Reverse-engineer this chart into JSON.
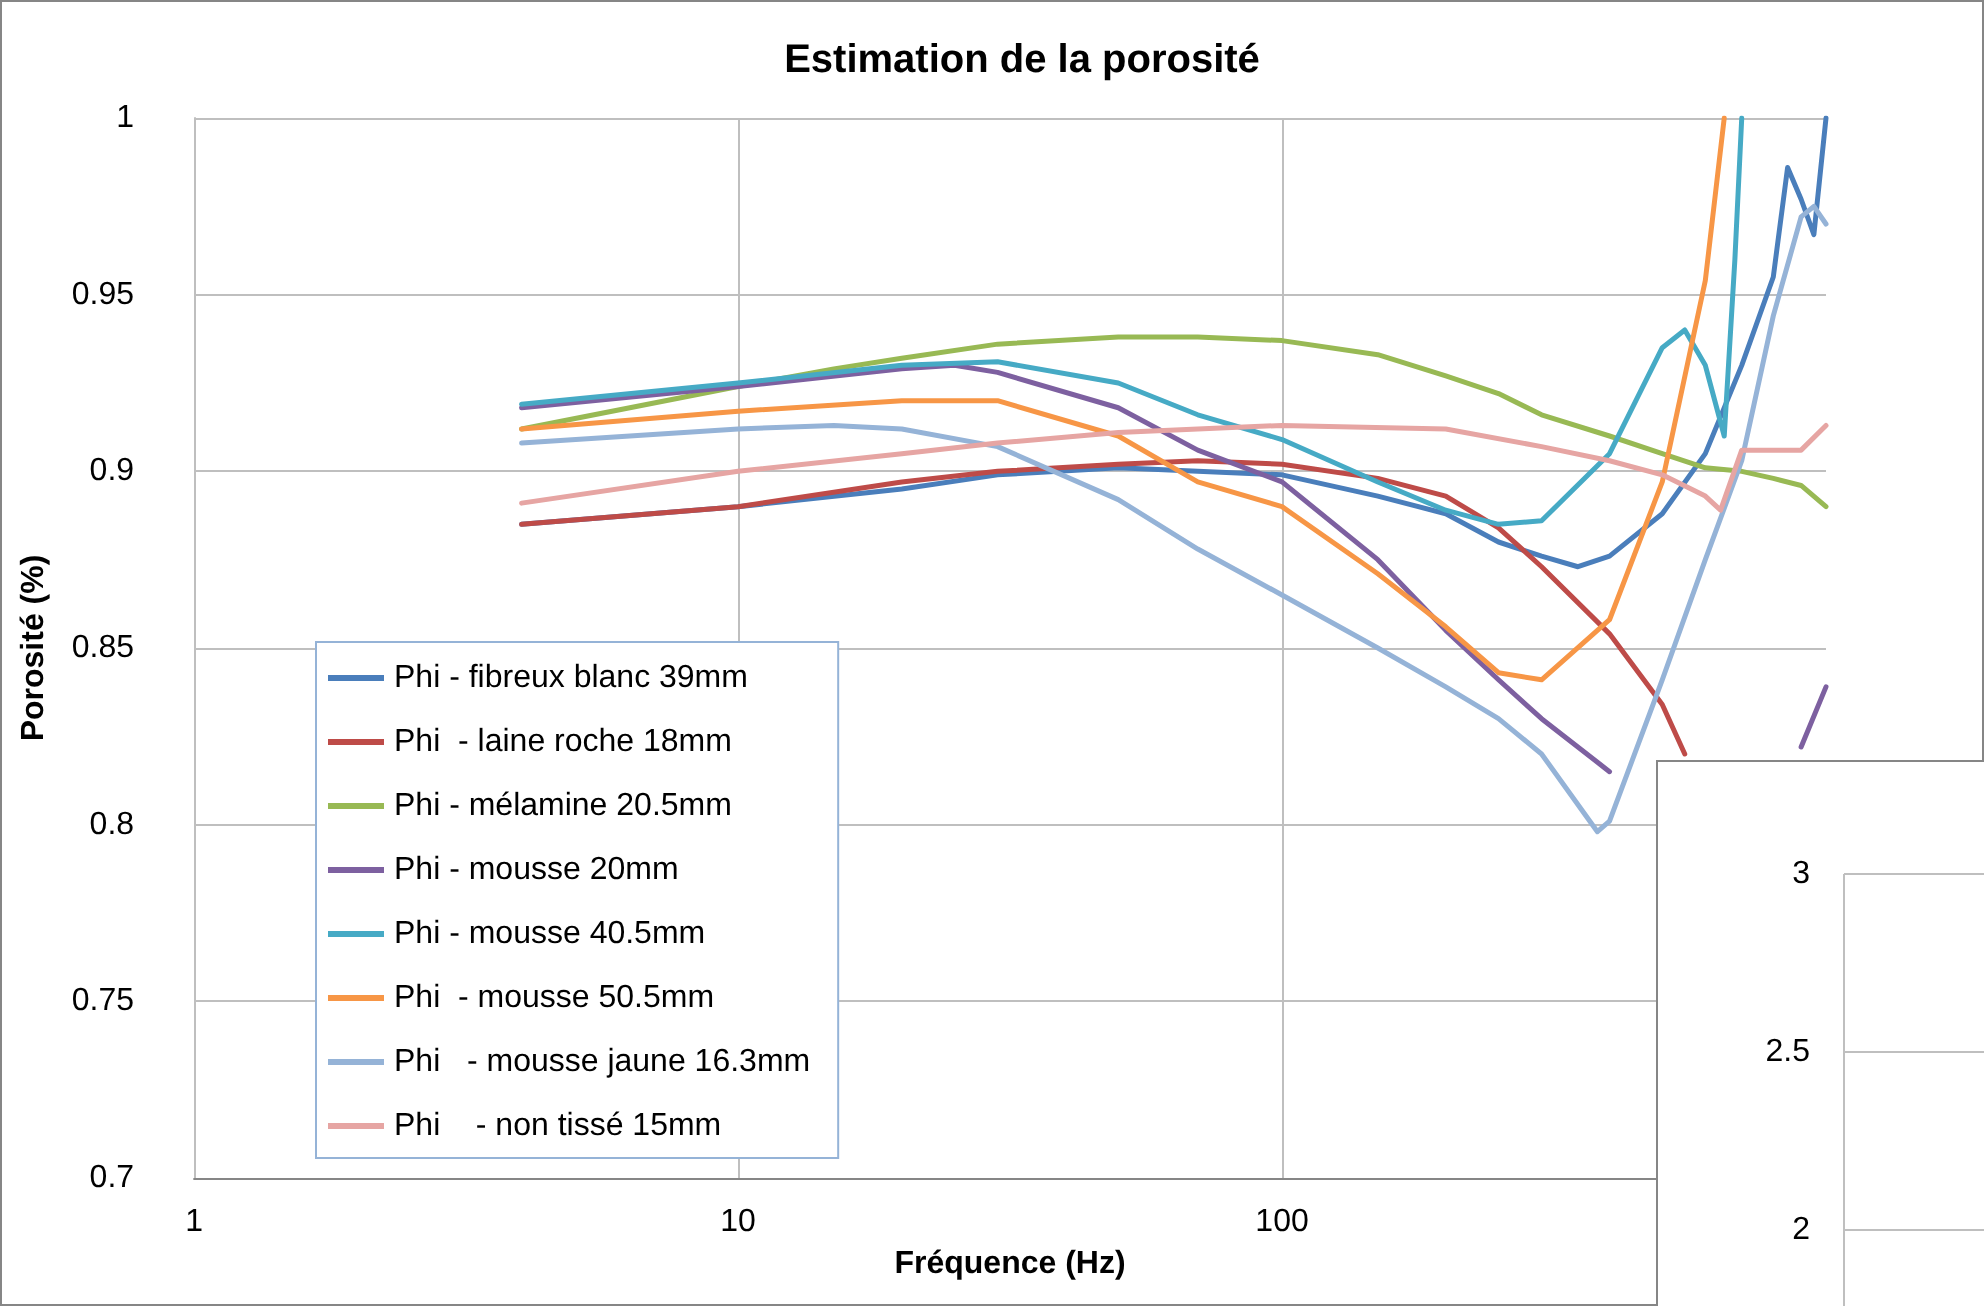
{
  "chart_data": [
    {
      "type": "line",
      "title": "Estimation de la porosité",
      "xlabel": "Fréquence (Hz)",
      "ylabel": "Porosité (%)",
      "log": "x",
      "xlim": [
        1,
        1000
      ],
      "xticks": [
        1,
        10,
        100
      ],
      "ylim": [
        0.7,
        1
      ],
      "yticks": [
        0.7,
        0.75,
        0.8,
        0.85,
        0.9,
        0.95,
        1
      ],
      "grid": true,
      "legend": "bottom left",
      "series": [
        {
          "name": "Phi - fibreux blanc 39mm",
          "color": "#4a7ebb",
          "x": [
            4,
            10,
            20,
            30,
            50,
            70,
            100,
            150,
            200,
            250,
            300,
            350,
            400,
            500,
            600,
            700,
            800,
            850,
            900,
            950,
            1000
          ],
          "values": [
            0.885,
            0.89,
            0.895,
            0.899,
            0.901,
            0.9,
            0.899,
            0.893,
            0.888,
            0.88,
            0.876,
            0.873,
            0.876,
            0.888,
            0.905,
            0.93,
            0.955,
            0.986,
            0.977,
            0.967,
            1.0
          ]
        },
        {
          "name": "Phi  - laine roche 18mm",
          "color": "#be4b48",
          "x": [
            4,
            10,
            20,
            30,
            50,
            70,
            100,
            150,
            200,
            250,
            300,
            400,
            500,
            550
          ],
          "values": [
            0.885,
            0.89,
            0.897,
            0.9,
            0.902,
            0.903,
            0.902,
            0.898,
            0.893,
            0.884,
            0.873,
            0.854,
            0.834,
            0.82
          ]
        },
        {
          "name": "Phi - mélamine 20.5mm",
          "color": "#98b954",
          "x": [
            4,
            10,
            15,
            20,
            30,
            50,
            70,
            100,
            150,
            200,
            250,
            300,
            400,
            500,
            600,
            700,
            800,
            900,
            1000
          ],
          "values": [
            0.912,
            0.924,
            0.929,
            0.932,
            0.936,
            0.938,
            0.938,
            0.937,
            0.933,
            0.927,
            0.922,
            0.916,
            0.91,
            0.905,
            0.901,
            0.9,
            0.898,
            0.896,
            0.89
          ]
        },
        {
          "name": "Phi - mousse 20mm",
          "color": "#7d60a0",
          "x": [
            4,
            10,
            20,
            25,
            30,
            50,
            70,
            100,
            150,
            200,
            250,
            300,
            400,
            500,
            700,
            900,
            1000
          ],
          "values": [
            0.918,
            0.924,
            0.929,
            0.93,
            0.928,
            0.918,
            0.906,
            0.897,
            0.875,
            0.855,
            0.841,
            0.83,
            0.815,
            null,
            null,
            0.822,
            0.839
          ]
        },
        {
          "name": "Phi - mousse 40.5mm",
          "color": "#46aac5",
          "x": [
            4,
            10,
            20,
            30,
            50,
            70,
            100,
            150,
            200,
            250,
            300,
            400,
            500,
            550,
            600,
            650,
            680,
            700
          ],
          "values": [
            0.919,
            0.925,
            0.93,
            0.931,
            0.925,
            0.916,
            0.909,
            0.897,
            0.889,
            0.885,
            0.886,
            0.905,
            0.935,
            0.94,
            0.93,
            0.91,
            0.96,
            1.0
          ]
        },
        {
          "name": "Phi  - mousse 50.5mm",
          "color": "#f79646",
          "x": [
            4,
            10,
            20,
            30,
            50,
            70,
            100,
            150,
            200,
            250,
            300,
            400,
            500,
            600,
            650
          ],
          "values": [
            0.912,
            0.917,
            0.92,
            0.92,
            0.91,
            0.897,
            0.89,
            0.871,
            0.856,
            0.843,
            0.841,
            0.858,
            0.897,
            0.954,
            1.0
          ]
        },
        {
          "name": "Phi   - mousse jaune 16.3mm",
          "color": "#95b3d7",
          "x": [
            4,
            10,
            15,
            20,
            30,
            50,
            70,
            100,
            150,
            200,
            250,
            300,
            380,
            400,
            500,
            600,
            700,
            800,
            900,
            950,
            1000
          ],
          "values": [
            0.908,
            0.912,
            0.913,
            0.912,
            0.907,
            0.892,
            0.878,
            0.865,
            0.85,
            0.839,
            0.83,
            0.82,
            0.798,
            0.801,
            0.841,
            0.875,
            0.903,
            0.944,
            0.972,
            0.975,
            0.97
          ]
        },
        {
          "name": "Phi    - non tissé 15mm",
          "color": "#e6a5a3",
          "x": [
            4,
            10,
            20,
            30,
            50,
            70,
            100,
            200,
            300,
            400,
            500,
            600,
            640,
            700,
            900,
            1000
          ],
          "values": [
            0.891,
            0.9,
            0.905,
            0.908,
            0.911,
            0.912,
            0.913,
            0.912,
            0.907,
            0.903,
            0.899,
            0.893,
            0.889,
            0.906,
            0.906,
            0.913
          ]
        }
      ]
    },
    {
      "type": "other",
      "annotations": [
        "3",
        "2.5",
        "2"
      ]
    }
  ]
}
